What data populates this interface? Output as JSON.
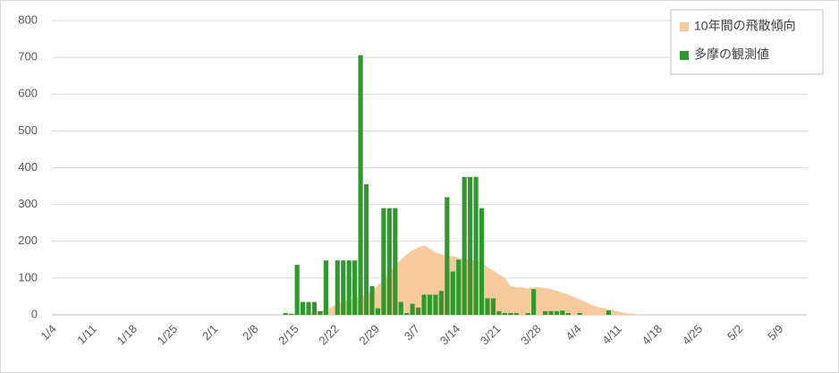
{
  "chart_data": {
    "type": "bar_area",
    "categories": [
      "1/4",
      null,
      null,
      null,
      null,
      null,
      null,
      "1/11",
      null,
      null,
      null,
      null,
      null,
      null,
      "1/18",
      null,
      null,
      null,
      null,
      null,
      null,
      "1/25",
      null,
      null,
      null,
      null,
      null,
      null,
      "2/1",
      null,
      null,
      null,
      null,
      null,
      null,
      "2/8",
      null,
      null,
      null,
      null,
      null,
      null,
      "2/15",
      null,
      null,
      null,
      null,
      null,
      null,
      "2/22",
      null,
      null,
      null,
      null,
      null,
      null,
      "2/29",
      null,
      null,
      null,
      null,
      null,
      null,
      "3/7",
      null,
      null,
      null,
      null,
      null,
      null,
      "3/14",
      null,
      null,
      null,
      null,
      null,
      null,
      "3/21",
      null,
      null,
      null,
      null,
      null,
      null,
      "3/28",
      null,
      null,
      null,
      null,
      null,
      null,
      "4/4",
      null,
      null,
      null,
      null,
      null,
      null,
      "4/11",
      null,
      null,
      null,
      null,
      null,
      null,
      "4/18",
      null,
      null,
      null,
      null,
      null,
      null,
      "4/25",
      null,
      null,
      null,
      null,
      null,
      null,
      "5/2",
      null,
      null,
      null,
      null,
      null,
      null,
      "5/9",
      null,
      null,
      null,
      null
    ],
    "series": [
      {
        "name": "10年間の飛散傾向",
        "kind": "area",
        "color": "#f9cb9c",
        "values": [
          0,
          0,
          0,
          0,
          0,
          0,
          0,
          0,
          0,
          0,
          0,
          0,
          0,
          0,
          0,
          0,
          0,
          0,
          0,
          0,
          0,
          0,
          0,
          0,
          0,
          0,
          0,
          0,
          0,
          0,
          0,
          0,
          0,
          0,
          0,
          0,
          0,
          0,
          0,
          0,
          1,
          2,
          3,
          5,
          6,
          8,
          10,
          15,
          22,
          28,
          35,
          40,
          45,
          50,
          55,
          65,
          80,
          95,
          115,
          135,
          150,
          165,
          175,
          183,
          188,
          180,
          170,
          165,
          160,
          160,
          155,
          152,
          150,
          148,
          140,
          130,
          120,
          110,
          100,
          78,
          75,
          75,
          72,
          75,
          75,
          73,
          70,
          65,
          60,
          55,
          48,
          42,
          35,
          28,
          22,
          18,
          15,
          12,
          8,
          5,
          3,
          1,
          0,
          0,
          0,
          0,
          0,
          0,
          0,
          0,
          0,
          0,
          0,
          0,
          0,
          0,
          0,
          0,
          0,
          0,
          0,
          0,
          0,
          0,
          0,
          0,
          0,
          0,
          0,
          0,
          0
        ]
      },
      {
        "name": "多摩の観測値",
        "kind": "bar",
        "color": "#2e9a2e",
        "values": [
          0,
          0,
          0,
          0,
          0,
          0,
          0,
          0,
          0,
          0,
          0,
          0,
          0,
          0,
          0,
          0,
          0,
          0,
          0,
          0,
          0,
          0,
          0,
          0,
          0,
          0,
          0,
          0,
          0,
          0,
          0,
          0,
          0,
          0,
          0,
          0,
          0,
          0,
          0,
          0,
          5,
          3,
          136,
          35,
          35,
          35,
          10,
          148,
          0,
          148,
          148,
          148,
          148,
          706,
          355,
          78,
          18,
          290,
          290,
          290,
          35,
          5,
          30,
          20,
          55,
          55,
          55,
          65,
          320,
          118,
          150,
          375,
          375,
          375,
          290,
          45,
          45,
          10,
          5,
          5,
          5,
          0,
          5,
          70,
          0,
          10,
          10,
          10,
          12,
          5,
          0,
          5,
          0,
          0,
          0,
          0,
          12,
          0,
          0,
          0,
          0,
          0,
          0,
          0,
          0,
          0,
          0,
          0,
          0,
          0,
          0,
          0,
          0,
          0,
          0,
          0,
          0,
          0,
          0,
          0,
          0,
          0,
          0,
          0,
          0,
          0,
          0,
          0,
          0,
          0,
          0
        ]
      }
    ],
    "ylim": [
      0,
      800
    ],
    "yticks": [
      0,
      100,
      200,
      300,
      400,
      500,
      600,
      700,
      800
    ],
    "grid": true,
    "legend": "upper right"
  }
}
